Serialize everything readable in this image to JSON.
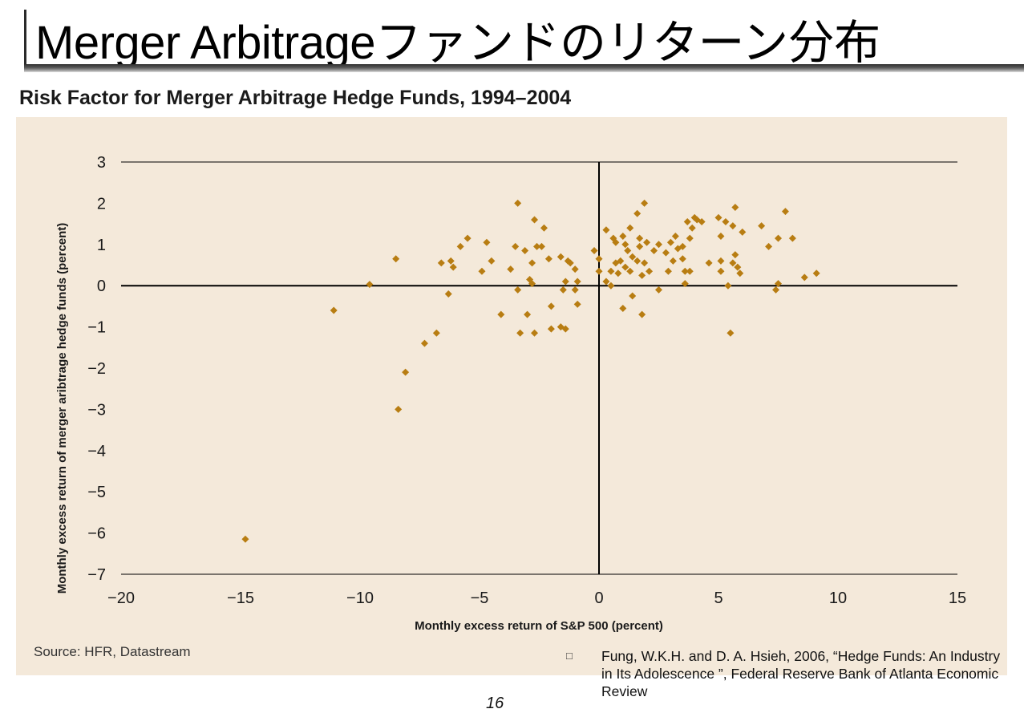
{
  "slide": {
    "title": "Merger Arbitrageファンドのリターン分布",
    "page_number": "16",
    "source": "Source: HFR, Datastream",
    "reference": {
      "bullet": "□",
      "text": "Fung, W.K.H. and D. A. Hsieh, 2006, “Hedge Funds: An Industry in Its Adolescence ”, Federal Reserve Bank of Atlanta Economic Review"
    }
  },
  "colors": {
    "panel_background": "#f4e9da",
    "marker": "#b87d12",
    "axis": "#000000",
    "gridline": "#000000"
  },
  "chart_data": {
    "type": "scatter",
    "title": "Risk Factor for Merger Arbitrage Hedge Funds, 1994–2004",
    "xlabel": "Monthly excess return of S&P 500 (percent)",
    "ylabel": "Monthly excess return of merger aribtrage hedge funds (percent)",
    "xlim": [
      -20,
      15
    ],
    "ylim": [
      -7,
      3
    ],
    "xticks": [
      -20,
      -15,
      -10,
      -5,
      0,
      5,
      10,
      15
    ],
    "yticks": [
      -7,
      -6,
      -5,
      -4,
      -3,
      -2,
      -1,
      0,
      1,
      2,
      3
    ],
    "xtick_labels": [
      "−20",
      "−15",
      "−10",
      "−5",
      "0",
      "5",
      "10",
      "15"
    ],
    "ytick_labels": [
      "−7",
      "−6",
      "−5",
      "−4",
      "−3",
      "−2",
      "−1",
      "0",
      "1",
      "2",
      "3"
    ],
    "grid": "horizontal lines at y = 3 and y = -7 only",
    "marker": "diamond",
    "points": [
      [
        -14.8,
        -6.15
      ],
      [
        -11.1,
        -0.6
      ],
      [
        -9.6,
        0.03
      ],
      [
        -8.4,
        -3.0
      ],
      [
        -8.5,
        0.65
      ],
      [
        -8.1,
        -2.1
      ],
      [
        -7.3,
        -1.4
      ],
      [
        -6.8,
        -1.15
      ],
      [
        -6.6,
        0.55
      ],
      [
        -6.3,
        -0.2
      ],
      [
        -6.2,
        0.6
      ],
      [
        -6.1,
        0.45
      ],
      [
        -5.8,
        0.95
      ],
      [
        -5.5,
        1.15
      ],
      [
        -4.9,
        0.35
      ],
      [
        -4.7,
        1.05
      ],
      [
        -4.5,
        0.6
      ],
      [
        -4.1,
        -0.7
      ],
      [
        -3.7,
        0.4
      ],
      [
        -3.4,
        2.0
      ],
      [
        -3.5,
        0.95
      ],
      [
        -3.4,
        -0.1
      ],
      [
        -3.3,
        -1.15
      ],
      [
        -3.1,
        0.85
      ],
      [
        -3.0,
        -0.7
      ],
      [
        -2.9,
        0.15
      ],
      [
        -2.8,
        0.55
      ],
      [
        -2.8,
        0.05
      ],
      [
        -2.7,
        1.6
      ],
      [
        -2.7,
        -1.15
      ],
      [
        -2.6,
        0.95
      ],
      [
        -2.4,
        0.95
      ],
      [
        -2.3,
        1.4
      ],
      [
        -2.1,
        0.65
      ],
      [
        -2.0,
        -0.5
      ],
      [
        -2.0,
        -1.05
      ],
      [
        -1.6,
        0.7
      ],
      [
        -1.6,
        -1.0
      ],
      [
        -1.5,
        -0.1
      ],
      [
        -1.4,
        -1.05
      ],
      [
        -1.4,
        0.1
      ],
      [
        -1.3,
        0.6
      ],
      [
        -1.2,
        0.55
      ],
      [
        -1.0,
        0.4
      ],
      [
        -1.0,
        -0.1
      ],
      [
        -0.9,
        0.1
      ],
      [
        -0.9,
        -0.45
      ],
      [
        -0.2,
        0.85
      ],
      [
        0.0,
        0.35
      ],
      [
        0.0,
        0.65
      ],
      [
        0.3,
        0.1
      ],
      [
        0.3,
        1.35
      ],
      [
        0.5,
        0.35
      ],
      [
        0.5,
        0.0
      ],
      [
        0.6,
        1.15
      ],
      [
        0.7,
        1.05
      ],
      [
        0.7,
        0.55
      ],
      [
        0.8,
        0.3
      ],
      [
        0.9,
        0.6
      ],
      [
        1.0,
        1.2
      ],
      [
        1.0,
        -0.55
      ],
      [
        1.1,
        1.0
      ],
      [
        1.1,
        0.45
      ],
      [
        1.2,
        0.85
      ],
      [
        1.3,
        1.4
      ],
      [
        1.3,
        0.35
      ],
      [
        1.4,
        0.7
      ],
      [
        1.4,
        -0.25
      ],
      [
        1.6,
        1.75
      ],
      [
        1.6,
        0.6
      ],
      [
        1.7,
        1.15
      ],
      [
        1.7,
        0.95
      ],
      [
        1.8,
        -0.7
      ],
      [
        1.8,
        0.25
      ],
      [
        1.9,
        2.0
      ],
      [
        1.9,
        0.55
      ],
      [
        2.0,
        1.05
      ],
      [
        2.1,
        0.35
      ],
      [
        2.3,
        0.85
      ],
      [
        2.5,
        1.0
      ],
      [
        2.5,
        -0.1
      ],
      [
        2.8,
        0.8
      ],
      [
        2.9,
        0.35
      ],
      [
        3.0,
        1.05
      ],
      [
        3.1,
        0.6
      ],
      [
        3.2,
        1.2
      ],
      [
        3.3,
        0.9
      ],
      [
        3.5,
        0.95
      ],
      [
        3.5,
        0.65
      ],
      [
        3.6,
        0.35
      ],
      [
        3.6,
        0.05
      ],
      [
        3.7,
        1.55
      ],
      [
        3.8,
        1.15
      ],
      [
        3.8,
        0.35
      ],
      [
        3.9,
        1.4
      ],
      [
        4.0,
        1.65
      ],
      [
        4.1,
        1.6
      ],
      [
        4.3,
        1.55
      ],
      [
        4.6,
        0.55
      ],
      [
        5.0,
        1.65
      ],
      [
        5.1,
        1.2
      ],
      [
        5.1,
        0.6
      ],
      [
        5.1,
        0.35
      ],
      [
        5.3,
        1.55
      ],
      [
        5.4,
        0.0
      ],
      [
        5.5,
        -1.15
      ],
      [
        5.6,
        1.45
      ],
      [
        5.6,
        0.55
      ],
      [
        5.7,
        1.9
      ],
      [
        5.7,
        0.75
      ],
      [
        5.8,
        0.45
      ],
      [
        5.9,
        0.3
      ],
      [
        6.0,
        1.3
      ],
      [
        6.8,
        1.45
      ],
      [
        7.1,
        0.95
      ],
      [
        7.4,
        -0.1
      ],
      [
        7.5,
        0.05
      ],
      [
        7.5,
        1.15
      ],
      [
        7.8,
        1.8
      ],
      [
        8.1,
        1.15
      ],
      [
        8.6,
        0.2
      ],
      [
        9.1,
        0.3
      ]
    ]
  }
}
